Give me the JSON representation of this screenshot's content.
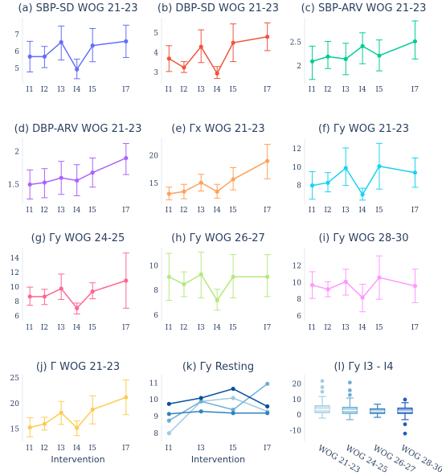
{
  "chart_data": [
    {
      "type": "line",
      "title": "(a) SBP-SD WOG 21-23",
      "color": "#636efa",
      "categories": [
        "I1",
        "I2",
        "I3",
        "I4",
        "I5",
        "I7"
      ],
      "values": [
        5.7,
        5.7,
        6.55,
        4.95,
        6.35,
        6.6
      ],
      "err_low": [
        4.8,
        5.05,
        5.5,
        4.4,
        5.4,
        5.65
      ],
      "err_high": [
        6.6,
        6.3,
        7.5,
        5.55,
        7.35,
        7.55
      ],
      "yticks": [
        5,
        6,
        7
      ],
      "ylim": [
        4.3,
        7.8
      ],
      "xlabel": ""
    },
    {
      "type": "line",
      "title": "(b) DBP-SD WOG 21-23",
      "color": "#ef553b",
      "categories": [
        "I1",
        "I2",
        "I3",
        "I4",
        "I5",
        "I7"
      ],
      "values": [
        3.7,
        3.25,
        4.3,
        2.95,
        4.5,
        4.8
      ],
      "err_low": [
        3.05,
        3.0,
        3.5,
        2.7,
        3.55,
        4.1
      ],
      "err_high": [
        4.35,
        3.55,
        5.15,
        3.3,
        5.45,
        5.5
      ],
      "yticks": [
        3,
        4,
        5
      ],
      "ylim": [
        2.6,
        5.6
      ],
      "xlabel": ""
    },
    {
      "type": "line",
      "title": "(c) SBP-ARV WOG 21-23",
      "color": "#00cc96",
      "categories": [
        "I1",
        "I2",
        "I3",
        "I4",
        "I5",
        "I7"
      ],
      "values": [
        2.1,
        2.2,
        2.15,
        2.42,
        2.22,
        2.52
      ],
      "err_low": [
        1.72,
        1.95,
        1.82,
        2.05,
        1.9,
        2.15
      ],
      "err_high": [
        2.42,
        2.52,
        2.48,
        2.7,
        2.55,
        2.95
      ],
      "yticks": [
        2,
        2.5
      ],
      "ylim": [
        1.7,
        2.95
      ],
      "xlabel": ""
    },
    {
      "type": "line",
      "title": "(d) DBP-ARV WOG 21-23",
      "color": "#ab63fa",
      "categories": [
        "I1",
        "I2",
        "I3",
        "I4",
        "I5",
        "I7"
      ],
      "values": [
        1.5,
        1.53,
        1.6,
        1.56,
        1.68,
        1.9
      ],
      "err_low": [
        1.28,
        1.3,
        1.35,
        1.33,
        1.46,
        1.65
      ],
      "err_high": [
        1.72,
        1.74,
        1.85,
        1.8,
        1.9,
        2.12
      ],
      "yticks": [
        1.5,
        2
      ],
      "ylim": [
        1.25,
        2.15
      ],
      "xlabel": ""
    },
    {
      "type": "line",
      "title": "(e) Γx WOG 21-23",
      "color": "#ffa15a",
      "categories": [
        "I1",
        "I2",
        "I3",
        "I4",
        "I5",
        "I7"
      ],
      "values": [
        13.1,
        13.5,
        15.1,
        13.5,
        15.7,
        19.0
      ],
      "err_low": [
        12.0,
        12.2,
        13.6,
        12.3,
        13.8,
        15.8
      ],
      "err_high": [
        14.3,
        14.8,
        16.6,
        14.8,
        17.8,
        22.0
      ],
      "yticks": [
        15,
        20
      ],
      "ylim": [
        11.8,
        22.5
      ],
      "xlabel": ""
    },
    {
      "type": "line",
      "title": "(f) Γy WOG 21-23",
      "color": "#19d3f3",
      "categories": [
        "I1",
        "I2",
        "I3",
        "I4",
        "I5",
        "I7"
      ],
      "values": [
        8.0,
        8.3,
        9.9,
        7.0,
        10.1,
        9.4
      ],
      "err_low": [
        6.5,
        7.3,
        8.0,
        6.4,
        7.6,
        7.8
      ],
      "err_high": [
        9.5,
        9.4,
        12.1,
        7.7,
        12.6,
        11.0
      ],
      "yticks": [
        8,
        10,
        12
      ],
      "ylim": [
        6.3,
        12.8
      ],
      "xlabel": ""
    },
    {
      "type": "line",
      "title": "(g) Γy WOG 24-25",
      "color": "#ff6692",
      "categories": [
        "I1",
        "I2",
        "I3",
        "I4",
        "I5",
        "I7"
      ],
      "values": [
        8.7,
        8.7,
        9.8,
        7.1,
        9.4,
        10.9
      ],
      "err_low": [
        7.5,
        7.6,
        8.3,
        6.3,
        8.4,
        7.1
      ],
      "err_high": [
        10.0,
        9.7,
        11.8,
        7.8,
        10.6,
        14.7
      ],
      "yticks": [
        6,
        8,
        10,
        12,
        14
      ],
      "ylim": [
        5.8,
        15.0
      ],
      "xlabel": ""
    },
    {
      "type": "line",
      "title": "(h) Γy WOG 26-27",
      "color": "#b6e880",
      "categories": [
        "I1",
        "I2",
        "I3",
        "I4",
        "I5",
        "I7"
      ],
      "values": [
        9.1,
        8.5,
        9.3,
        7.2,
        9.1,
        9.1
      ],
      "err_low": [
        7.2,
        7.5,
        7.4,
        6.4,
        7.4,
        7.5
      ],
      "err_high": [
        11.0,
        9.5,
        11.1,
        8.1,
        10.9,
        10.9
      ],
      "yticks": [
        6,
        8,
        10
      ],
      "ylim": [
        5.8,
        11.2
      ],
      "xlabel": ""
    },
    {
      "type": "line",
      "title": "(i) Γy WOG 28-30",
      "color": "#ff97ff",
      "categories": [
        "I1",
        "I2",
        "I3",
        "I4",
        "I5",
        "I7"
      ],
      "values": [
        9.7,
        9.2,
        10.1,
        8.2,
        10.6,
        9.6
      ],
      "err_low": [
        8.1,
        8.3,
        8.5,
        6.5,
        8.0,
        7.6
      ],
      "err_high": [
        11.3,
        10.1,
        11.6,
        9.8,
        13.2,
        11.6
      ],
      "yticks": [
        6,
        8,
        10,
        12
      ],
      "ylim": [
        5.8,
        13.8
      ],
      "xlabel": ""
    },
    {
      "type": "line",
      "title": "(j) Γ WOG 21-23",
      "color": "#fecb52",
      "categories": [
        "I1",
        "I2",
        "I3",
        "I4",
        "I5",
        "I7"
      ],
      "values": [
        15.3,
        16.0,
        18.2,
        15.2,
        18.8,
        21.2
      ],
      "err_low": [
        13.5,
        14.8,
        15.9,
        13.7,
        16.0,
        17.8
      ],
      "err_high": [
        17.2,
        17.3,
        20.4,
        16.6,
        21.5,
        24.6
      ],
      "yticks": [
        15,
        20,
        25
      ],
      "ylim": [
        13.2,
        25.0
      ],
      "xlabel": "Intervention"
    },
    {
      "type": "line",
      "title": "(k) Γy Resting",
      "categories": [
        "I1",
        "I3",
        "I5",
        "I7"
      ],
      "ylim": [
        7.7,
        11.3
      ],
      "yticks": [
        8,
        9,
        10,
        11
      ],
      "xlabel": "Intervention",
      "series": [
        {
          "color": "#9ecae1",
          "values": [
            8.0,
            9.9,
            10.1,
            9.3
          ]
        },
        {
          "color": "#6baed6",
          "values": [
            8.75,
            9.9,
            9.4,
            10.95
          ]
        },
        {
          "color": "#3182bd",
          "values": [
            9.15,
            9.3,
            9.2,
            9.2
          ]
        },
        {
          "color": "#08519c",
          "values": [
            9.75,
            10.1,
            10.65,
            9.6
          ]
        }
      ]
    },
    {
      "type": "box",
      "title": "(l) Γy I3 - I4",
      "categories": [
        "WOG 21-23",
        "WOG 24-25",
        "WOG 26-27",
        "WOG 28-30"
      ],
      "colors": [
        "#a6cee3",
        "#6baed6",
        "#3182bd",
        "#1f5fbf"
      ],
      "ylim": [
        -15,
        24
      ],
      "yticks": [
        -10,
        0,
        10,
        20
      ],
      "xlabel": "",
      "boxes": [
        {
          "q1": 1.5,
          "median": 3.5,
          "q3": 6.0,
          "whisker_low": -2.0,
          "whisker_high": 12.0,
          "outliers": [
            15,
            18,
            22
          ]
        },
        {
          "q1": 1.0,
          "median": 3.0,
          "q3": 5.0,
          "whisker_low": -3.0,
          "whisker_high": 11.0,
          "outliers": [
            13,
            16,
            21
          ]
        },
        {
          "q1": 1.0,
          "median": 2.5,
          "q3": 4.0,
          "whisker_low": -1.5,
          "whisker_high": 7.0,
          "outliers": []
        },
        {
          "q1": 1.0,
          "median": 2.5,
          "q3": 4.5,
          "whisker_low": -3.0,
          "whisker_high": 8.0,
          "outliers": [
            10,
            -6,
            -12
          ]
        }
      ]
    }
  ]
}
